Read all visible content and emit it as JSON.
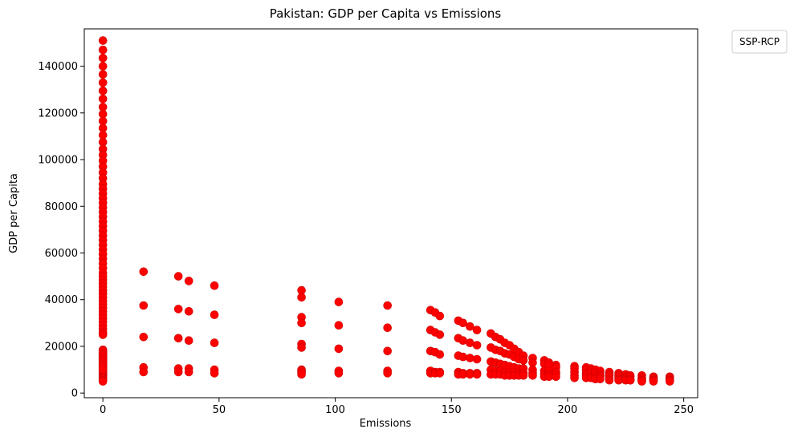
{
  "chart_data": {
    "type": "scatter",
    "title": "Pakistan: GDP per Capita vs Emissions",
    "xlabel": "Emissions",
    "ylabel": "GDP per Capita",
    "xlim": [
      -8,
      256
    ],
    "ylim": [
      -2000,
      156000
    ],
    "xticks": [
      0,
      50,
      100,
      150,
      200,
      250
    ],
    "yticks": [
      0,
      20000,
      40000,
      60000,
      80000,
      100000,
      120000,
      140000
    ],
    "grid": false,
    "legend": {
      "title": "SSP-RCP",
      "placement": "outside-top-right",
      "entries": []
    },
    "marker_color": "#ff0000",
    "marker_edge": "#cc0000",
    "series": [
      {
        "x": [
          0,
          0,
          0,
          0,
          0,
          0,
          0,
          0,
          0,
          0,
          0,
          0,
          0,
          0,
          0,
          0,
          0,
          0,
          0,
          0,
          0,
          0,
          0,
          0,
          0,
          0,
          0,
          0,
          0,
          0,
          0,
          0,
          0,
          0,
          0,
          0,
          0,
          0,
          0,
          0,
          0,
          0,
          0,
          0,
          0,
          0,
          0,
          0,
          0,
          0,
          0,
          0,
          0,
          0,
          0,
          0,
          0,
          0,
          0,
          0,
          0,
          0,
          0,
          0,
          0,
          0,
          0,
          0,
          0,
          0,
          0,
          0,
          0,
          0,
          0,
          0,
          0,
          0,
          0,
          0,
          0,
          0,
          0,
          0,
          0,
          0,
          0,
          0,
          0,
          0,
          0,
          0,
          0,
          0,
          0,
          17.5,
          17.5,
          17.5,
          17.5,
          17.5,
          32.5,
          32.5,
          32.5,
          32.5,
          32.5,
          37,
          37,
          37,
          37,
          37,
          48,
          48,
          48,
          48,
          48,
          85.5,
          85.5,
          85.5,
          85.5,
          85.5,
          85.5,
          85.5,
          85.5,
          85.5,
          85.5,
          101.5,
          101.5,
          101.5,
          101.5,
          101.5,
          122.5,
          122.5,
          122.5,
          122.5,
          122.5,
          141,
          141,
          141,
          141,
          141,
          143,
          143,
          143,
          143,
          143,
          145,
          145,
          145,
          145,
          145,
          153,
          153,
          153,
          153,
          153,
          155,
          155,
          155,
          155,
          155,
          158,
          158,
          158,
          158,
          158,
          161,
          161,
          161,
          161,
          161,
          167,
          167,
          167,
          167,
          167,
          169,
          169,
          169,
          169,
          169,
          171,
          171,
          171,
          171,
          171,
          173,
          173,
          173,
          173,
          173,
          175,
          175,
          175,
          175,
          175,
          177,
          177,
          177,
          177,
          177,
          179,
          179,
          179,
          179,
          179,
          181,
          181,
          181,
          181,
          181,
          185,
          185,
          185,
          185,
          185,
          190,
          190,
          190,
          190,
          190,
          192,
          192,
          192,
          192,
          192,
          195,
          195,
          195,
          195,
          195,
          203,
          203,
          203,
          203,
          203,
          208,
          208,
          208,
          208,
          208,
          210,
          210,
          210,
          210,
          210,
          212,
          212,
          212,
          212,
          212,
          214,
          214,
          214,
          214,
          214,
          218,
          218,
          218,
          218,
          218,
          222,
          222,
          222,
          222,
          222,
          225,
          225,
          225,
          225,
          225,
          227,
          227,
          227,
          227,
          227,
          232,
          232,
          232,
          232,
          232,
          237,
          237,
          237,
          237,
          237,
          244,
          244,
          244,
          244,
          244
        ],
        "y": [
          151000,
          147000,
          143500,
          140000,
          136500,
          133000,
          129500,
          126000,
          122500,
          119500,
          116500,
          113500,
          110500,
          107500,
          104500,
          102000,
          99500,
          97000,
          94500,
          92000,
          89500,
          87500,
          85500,
          83500,
          81500,
          79500,
          77500,
          75500,
          73500,
          71500,
          69500,
          67500,
          65500,
          63500,
          61500,
          59500,
          57500,
          55500,
          53500,
          51500,
          50000,
          48500,
          47000,
          45500,
          44000,
          42500,
          41000,
          39500,
          38000,
          36500,
          35000,
          33500,
          32000,
          30500,
          29000,
          27500,
          26000,
          25000,
          18500,
          18000,
          17500,
          17000,
          16500,
          16000,
          15500,
          15000,
          14500,
          14000,
          13500,
          13000,
          12500,
          12000,
          11500,
          11000,
          10500,
          10000,
          9500,
          9000,
          8500,
          8000,
          7500,
          7000,
          6500,
          6000,
          5500,
          5000,
          18200,
          17200,
          16200,
          15200,
          14200,
          13200,
          12200,
          11200,
          10200,
          52000,
          37500,
          24000,
          11000,
          9000,
          50000,
          36000,
          23500,
          10500,
          9000,
          48000,
          35000,
          22500,
          10500,
          9000,
          46000,
          33500,
          21500,
          10000,
          8500,
          44000,
          41000,
          32500,
          30000,
          21000,
          19500,
          10000,
          9500,
          9000,
          8000,
          39000,
          29000,
          19000,
          9500,
          8500,
          37500,
          28000,
          18000,
          9500,
          8500,
          35500,
          27000,
          18000,
          9500,
          8500,
          34500,
          26000,
          17500,
          9000,
          8500,
          33000,
          25000,
          16500,
          9000,
          8500,
          31000,
          23500,
          16000,
          9000,
          8000,
          30000,
          22500,
          15500,
          8500,
          8000,
          28500,
          21500,
          15000,
          8500,
          8000,
          27000,
          20500,
          14500,
          8500,
          8000,
          25500,
          19500,
          13500,
          10000,
          8000,
          24000,
          18500,
          13000,
          9500,
          8000,
          23000,
          18000,
          12500,
          9500,
          8000,
          21500,
          17000,
          12000,
          9000,
          7500,
          20500,
          16500,
          11500,
          9000,
          7500,
          19000,
          15500,
          11000,
          9000,
          7500,
          17500,
          14500,
          10500,
          8500,
          7500,
          16000,
          14000,
          10500,
          8500,
          7500,
          15000,
          13000,
          10000,
          8500,
          7500,
          14000,
          12500,
          9500,
          8000,
          7000,
          13000,
          12000,
          9500,
          8000,
          7000,
          12000,
          11000,
          9000,
          8000,
          7000,
          11500,
          10500,
          9000,
          7500,
          6500,
          11000,
          10000,
          8500,
          7500,
          6500,
          10500,
          9500,
          8500,
          7000,
          6500,
          10000,
          9000,
          8000,
          7000,
          6000,
          9500,
          8500,
          7500,
          7000,
          6000,
          9000,
          8000,
          7500,
          6500,
          5500,
          8500,
          7500,
          7000,
          6000,
          5500,
          8000,
          7000,
          6500,
          6000,
          5500,
          7500,
          7000,
          6000,
          5500,
          5500,
          7500,
          6500,
          6000,
          5500,
          5000,
          7000,
          6500,
          6000,
          5500,
          5000,
          7000,
          6500,
          6000,
          5500,
          5000
        ]
      }
    ]
  }
}
